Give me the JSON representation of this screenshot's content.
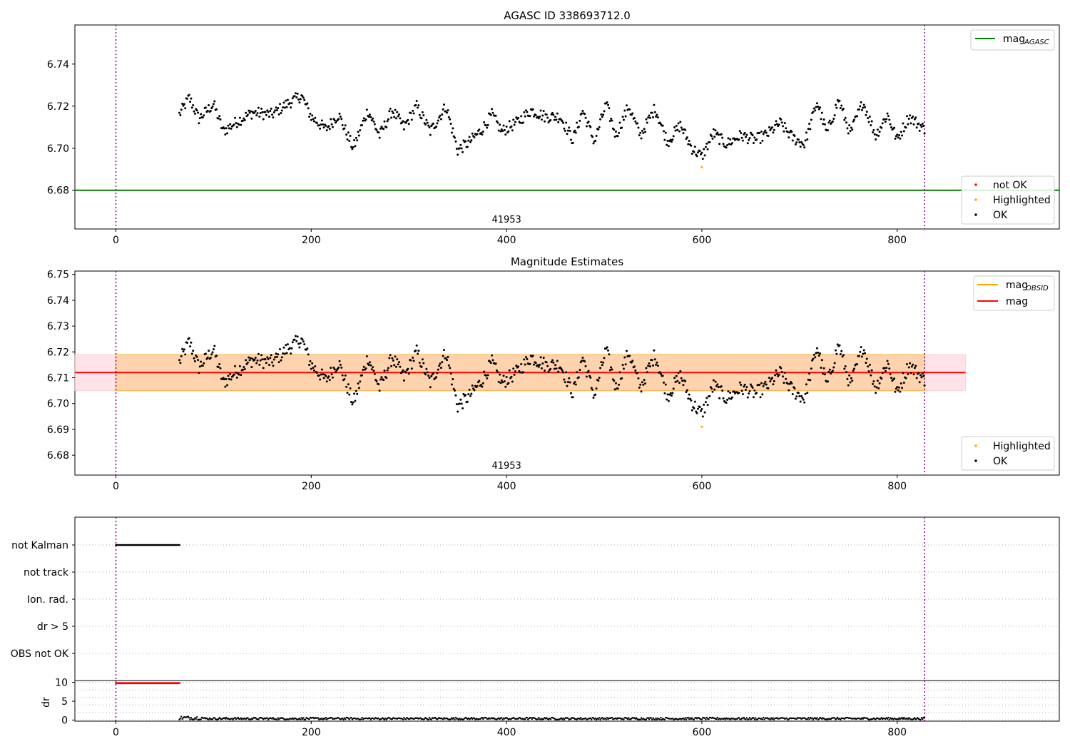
{
  "chart_data": [
    {
      "type": "scatter",
      "title": "AGASC ID 338693712.0",
      "annotation": "41953",
      "xlim": [
        -42,
        966
      ],
      "ylim": [
        6.6616,
        6.7586
      ],
      "xticks": [
        0,
        200,
        400,
        600,
        800
      ],
      "yticks": [
        6.68,
        6.7,
        6.72,
        6.74
      ],
      "vlines": [
        0,
        828
      ],
      "hlines": [
        {
          "name": "mag_AGASC",
          "y": 6.68,
          "color": "#008000"
        }
      ],
      "legend_lines": [
        {
          "label": "mag",
          "sub": "AGASC",
          "color": "#008000"
        }
      ],
      "legend_points": [
        {
          "label": "not OK",
          "color": "#ff0000"
        },
        {
          "label": "Highlighted",
          "color": "#ffa500"
        },
        {
          "label": "OK",
          "color": "#000000"
        }
      ],
      "series": [
        {
          "name": "OK",
          "color": "#000000",
          "x_range": [
            65,
            828
          ],
          "n": 764,
          "knots": [
            [
              65,
              6.716
            ],
            [
              75,
              6.724
            ],
            [
              85,
              6.714
            ],
            [
              100,
              6.721
            ],
            [
              110,
              6.708
            ],
            [
              125,
              6.713
            ],
            [
              140,
              6.717
            ],
            [
              160,
              6.716
            ],
            [
              175,
              6.721
            ],
            [
              190,
              6.725
            ],
            [
              200,
              6.715
            ],
            [
              215,
              6.709
            ],
            [
              228,
              6.716
            ],
            [
              243,
              6.7
            ],
            [
              258,
              6.718
            ],
            [
              270,
              6.706
            ],
            [
              283,
              6.718
            ],
            [
              295,
              6.71
            ],
            [
              308,
              6.72
            ],
            [
              322,
              6.708
            ],
            [
              338,
              6.72
            ],
            [
              350,
              6.699
            ],
            [
              362,
              6.703
            ],
            [
              375,
              6.709
            ],
            [
              385,
              6.716
            ],
            [
              395,
              6.708
            ],
            [
              410,
              6.712
            ],
            [
              425,
              6.718
            ],
            [
              440,
              6.715
            ],
            [
              455,
              6.715
            ],
            [
              468,
              6.704
            ],
            [
              478,
              6.718
            ],
            [
              490,
              6.703
            ],
            [
              502,
              6.721
            ],
            [
              512,
              6.706
            ],
            [
              525,
              6.72
            ],
            [
              537,
              6.706
            ],
            [
              552,
              6.719
            ],
            [
              565,
              6.703
            ],
            [
              578,
              6.711
            ],
            [
              590,
              6.7
            ],
            [
              600,
              6.696
            ],
            [
              612,
              6.707
            ],
            [
              625,
              6.702
            ],
            [
              640,
              6.706
            ],
            [
              655,
              6.704
            ],
            [
              668,
              6.707
            ],
            [
              680,
              6.712
            ],
            [
              693,
              6.705
            ],
            [
              705,
              6.702
            ],
            [
              718,
              6.722
            ],
            [
              728,
              6.707
            ],
            [
              740,
              6.723
            ],
            [
              752,
              6.707
            ],
            [
              765,
              6.722
            ],
            [
              778,
              6.706
            ],
            [
              790,
              6.716
            ],
            [
              800,
              6.704
            ],
            [
              812,
              6.715
            ],
            [
              828,
              6.709
            ]
          ]
        },
        {
          "name": "Highlighted",
          "color": "#ffa500",
          "x": [
            600
          ],
          "y": [
            6.691
          ]
        }
      ]
    },
    {
      "type": "scatter",
      "title": "Magnitude Estimates",
      "annotation": "41953",
      "xlim": [
        -42,
        966
      ],
      "ylim": [
        6.6723,
        6.7513
      ],
      "xticks": [
        0,
        200,
        400,
        600,
        800
      ],
      "yticks": [
        6.68,
        6.69,
        6.7,
        6.71,
        6.72,
        6.73,
        6.74,
        6.75
      ],
      "vlines": [
        0,
        828
      ],
      "hlines": [
        {
          "name": "mag",
          "y": 6.712,
          "color": "#ff0000"
        }
      ],
      "bands": [
        {
          "x": [
            -42,
            870
          ],
          "y": [
            6.705,
            6.719
          ],
          "color": "#ffc0cb",
          "opacity": 0.45
        },
        {
          "x": [
            0,
            828
          ],
          "y": [
            6.705,
            6.719
          ],
          "color": "#ffa500",
          "opacity": 0.25
        }
      ],
      "legend_lines": [
        {
          "label": "mag",
          "sub": "OBSID",
          "color": "#ffa500"
        },
        {
          "label": "mag",
          "sub": "",
          "color": "#ff0000"
        }
      ],
      "legend_points": [
        {
          "label": "Highlighted",
          "color": "#ffa500"
        },
        {
          "label": "OK",
          "color": "#000000"
        }
      ],
      "series_ref": "same points as panel 1"
    },
    {
      "type": "scatter",
      "title": "",
      "xlim": [
        -42,
        966
      ],
      "categories": [
        "not Kalman",
        "not track",
        "Ion. rad.",
        "dr > 5",
        "OBS not OK"
      ],
      "flags": [
        {
          "category": "not Kalman",
          "x_range": [
            0,
            65
          ],
          "color": "#000000"
        }
      ],
      "vlines": [
        0,
        828
      ]
    },
    {
      "type": "scatter",
      "title": "",
      "ylabel": "dr",
      "xlim": [
        -42,
        966
      ],
      "ylim": [
        -0.3,
        10.5
      ],
      "xticks": [
        0,
        200,
        400,
        600,
        800
      ],
      "yticks": [
        0,
        5,
        10
      ],
      "vlines": [
        0,
        828
      ],
      "series": [
        {
          "name": "dr > 5",
          "color": "#ff0000",
          "x_range": [
            0,
            65
          ],
          "value": 9.8
        },
        {
          "name": "dr",
          "color": "#000000",
          "x_range": [
            65,
            828
          ],
          "value_range": [
            0.1,
            0.9
          ]
        }
      ]
    }
  ]
}
